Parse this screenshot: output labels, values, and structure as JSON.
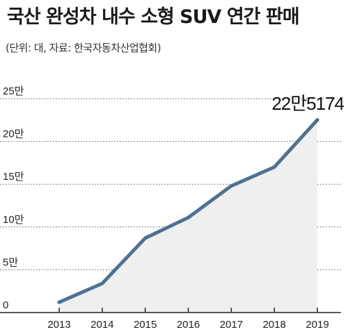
{
  "header": {
    "title": "국산 완성차 내수 소형 SUV 연간 판매",
    "subtitle": "(단위: 대, 자료: 한국자동차산업협회)"
  },
  "chart_data": {
    "type": "area",
    "title": "국산 완성차 내수 소형 SUV 연간 판매",
    "unit": "대",
    "x": [
      "2013",
      "2014",
      "2015",
      "2016",
      "2017",
      "2018",
      "2019"
    ],
    "series": [
      {
        "values": [
          12000,
          34000,
          87000,
          111000,
          148000,
          170000,
          225174
        ]
      }
    ],
    "ylim": [
      0,
      250000
    ],
    "yticks": [
      0,
      50000,
      100000,
      150000,
      200000,
      250000
    ],
    "ytick_labels": [
      "0",
      "5만",
      "10만",
      "15만",
      "20만",
      "25만"
    ],
    "annotation": {
      "text": "22만5174",
      "index": 6
    },
    "grid": true,
    "colors": {
      "line": "#4f7192",
      "area": "#efefef",
      "grid": "#555555"
    }
  }
}
